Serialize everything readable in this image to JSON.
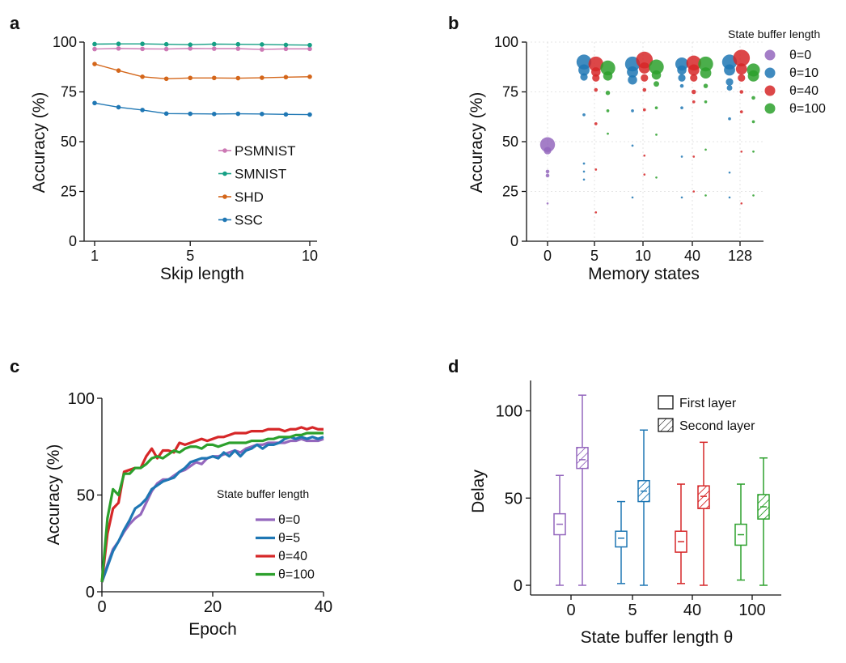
{
  "chart_data": [
    {
      "panel": "a",
      "type": "line",
      "xlabel": "Skip length",
      "ylabel": "Accuracy (%)",
      "xlim": [
        1,
        10
      ],
      "ylim": [
        0,
        100
      ],
      "xticks": [
        1,
        5,
        10
      ],
      "yticks": [
        0,
        25,
        50,
        75,
        100
      ],
      "x": [
        1,
        2,
        3,
        4,
        5,
        6,
        7,
        8,
        9,
        10
      ],
      "series": [
        {
          "name": "PSMNIST",
          "color": "#cc79b4",
          "values": [
            96.5,
            96.8,
            96.6,
            96.5,
            96.8,
            96.7,
            96.7,
            96.3,
            96.6,
            96.6
          ]
        },
        {
          "name": "SMNIST",
          "color": "#16a085",
          "values": [
            99.0,
            99.1,
            99.1,
            98.9,
            98.7,
            99.0,
            98.9,
            98.8,
            98.6,
            98.5
          ]
        },
        {
          "name": "SHD",
          "color": "#d4661a",
          "values": [
            89.0,
            85.7,
            82.6,
            81.6,
            82.0,
            82.0,
            81.9,
            82.1,
            82.4,
            82.6
          ]
        },
        {
          "name": "SSC",
          "color": "#1f77b4",
          "values": [
            69.4,
            67.3,
            65.9,
            64.1,
            64.0,
            63.9,
            64.0,
            63.9,
            63.7,
            63.6
          ]
        }
      ],
      "legend": [
        "PSMNIST",
        "SMNIST",
        "SHD",
        "SSC"
      ]
    },
    {
      "panel": "b",
      "type": "scatter",
      "xlabel": "Memory states",
      "ylabel": "Accuracy (%)",
      "categories": [
        "0",
        "5",
        "10",
        "40",
        "128"
      ],
      "ylim": [
        0,
        100
      ],
      "yticks": [
        0,
        25,
        50,
        75,
        100
      ],
      "legend_title": "State buffer length",
      "series": [
        {
          "name": "θ=0",
          "color": "#9467bd",
          "points": [
            {
              "cat": "0",
              "offset": 0,
              "y": 48.5,
              "size": 4
            },
            {
              "cat": "0",
              "offset": 0,
              "y": 45.5,
              "size": 2
            },
            {
              "cat": "0",
              "offset": 0,
              "y": 35.0,
              "size": 1
            },
            {
              "cat": "0",
              "offset": 0,
              "y": 33.0,
              "size": 1
            },
            {
              "cat": "0",
              "offset": 0,
              "y": 19.0,
              "size": 0.5
            }
          ]
        },
        {
          "name": "θ=10",
          "color": "#1f77b4",
          "points": [
            {
              "cat": "5",
              "offset": -0.22,
              "y": 90.0,
              "size": 4
            },
            {
              "cat": "5",
              "offset": -0.22,
              "y": 86.0,
              "size": 3
            },
            {
              "cat": "5",
              "offset": -0.22,
              "y": 82.5,
              "size": 2
            },
            {
              "cat": "5",
              "offset": -0.22,
              "y": 63.5,
              "size": 0.8
            },
            {
              "cat": "5",
              "offset": -0.22,
              "y": 39.0,
              "size": 0.6
            },
            {
              "cat": "5",
              "offset": -0.22,
              "y": 35.0,
              "size": 0.5
            },
            {
              "cat": "5",
              "offset": -0.22,
              "y": 31.0,
              "size": 0.5
            },
            {
              "cat": "10",
              "offset": -0.22,
              "y": 89.0,
              "size": 4
            },
            {
              "cat": "10",
              "offset": -0.22,
              "y": 85.0,
              "size": 3
            },
            {
              "cat": "10",
              "offset": -0.22,
              "y": 81.0,
              "size": 2.5
            },
            {
              "cat": "10",
              "offset": -0.22,
              "y": 65.5,
              "size": 0.8
            },
            {
              "cat": "10",
              "offset": -0.22,
              "y": 48.0,
              "size": 0.6
            },
            {
              "cat": "10",
              "offset": -0.22,
              "y": 22.0,
              "size": 0.4
            },
            {
              "cat": "40",
              "offset": -0.22,
              "y": 89.0,
              "size": 3.5
            },
            {
              "cat": "40",
              "offset": -0.22,
              "y": 86.0,
              "size": 2.5
            },
            {
              "cat": "40",
              "offset": -0.22,
              "y": 82.0,
              "size": 2
            },
            {
              "cat": "40",
              "offset": -0.22,
              "y": 78.0,
              "size": 1
            },
            {
              "cat": "40",
              "offset": -0.22,
              "y": 67.0,
              "size": 0.8
            },
            {
              "cat": "40",
              "offset": -0.22,
              "y": 42.5,
              "size": 0.5
            },
            {
              "cat": "40",
              "offset": -0.22,
              "y": 22.0,
              "size": 0.4
            },
            {
              "cat": "128",
              "offset": -0.22,
              "y": 90.0,
              "size": 4
            },
            {
              "cat": "128",
              "offset": -0.22,
              "y": 86.0,
              "size": 3
            },
            {
              "cat": "128",
              "offset": -0.22,
              "y": 80.0,
              "size": 2
            },
            {
              "cat": "128",
              "offset": -0.22,
              "y": 77.0,
              "size": 1.5
            },
            {
              "cat": "128",
              "offset": -0.22,
              "y": 61.5,
              "size": 0.8
            },
            {
              "cat": "128",
              "offset": -0.22,
              "y": 34.5,
              "size": 0.5
            },
            {
              "cat": "128",
              "offset": -0.22,
              "y": 22.0,
              "size": 0.4
            }
          ]
        },
        {
          "name": "θ=40",
          "color": "#d62728",
          "points": [
            {
              "cat": "5",
              "offset": 0.03,
              "y": 89.0,
              "size": 4
            },
            {
              "cat": "5",
              "offset": 0.03,
              "y": 85.0,
              "size": 2.5
            },
            {
              "cat": "5",
              "offset": 0.03,
              "y": 82.0,
              "size": 2
            },
            {
              "cat": "5",
              "offset": 0.03,
              "y": 76.0,
              "size": 1
            },
            {
              "cat": "5",
              "offset": 0.03,
              "y": 59.0,
              "size": 0.8
            },
            {
              "cat": "5",
              "offset": 0.03,
              "y": 36.0,
              "size": 0.6
            },
            {
              "cat": "5",
              "offset": 0.03,
              "y": 14.5,
              "size": 0.4
            },
            {
              "cat": "10",
              "offset": 0.03,
              "y": 91.0,
              "size": 4.5
            },
            {
              "cat": "10",
              "offset": 0.03,
              "y": 87.0,
              "size": 3
            },
            {
              "cat": "10",
              "offset": 0.03,
              "y": 82.0,
              "size": 2
            },
            {
              "cat": "10",
              "offset": 0.03,
              "y": 76.0,
              "size": 1
            },
            {
              "cat": "10",
              "offset": 0.03,
              "y": 66.0,
              "size": 0.8
            },
            {
              "cat": "10",
              "offset": 0.03,
              "y": 43.0,
              "size": 0.5
            },
            {
              "cat": "10",
              "offset": 0.03,
              "y": 33.5,
              "size": 0.5
            },
            {
              "cat": "40",
              "offset": 0.03,
              "y": 89.5,
              "size": 4
            },
            {
              "cat": "40",
              "offset": 0.03,
              "y": 86.0,
              "size": 3
            },
            {
              "cat": "40",
              "offset": 0.03,
              "y": 82.0,
              "size": 2
            },
            {
              "cat": "40",
              "offset": 0.03,
              "y": 75.0,
              "size": 1.2
            },
            {
              "cat": "40",
              "offset": 0.03,
              "y": 70.0,
              "size": 0.8
            },
            {
              "cat": "40",
              "offset": 0.03,
              "y": 42.5,
              "size": 0.5
            },
            {
              "cat": "40",
              "offset": 0.03,
              "y": 25.0,
              "size": 0.4
            },
            {
              "cat": "128",
              "offset": 0.03,
              "y": 92.0,
              "size": 4.5
            },
            {
              "cat": "128",
              "offset": 0.03,
              "y": 86.5,
              "size": 3
            },
            {
              "cat": "128",
              "offset": 0.03,
              "y": 82.0,
              "size": 2
            },
            {
              "cat": "128",
              "offset": 0.03,
              "y": 75.0,
              "size": 1
            },
            {
              "cat": "128",
              "offset": 0.03,
              "y": 65.0,
              "size": 0.8
            },
            {
              "cat": "128",
              "offset": 0.03,
              "y": 45.0,
              "size": 0.5
            },
            {
              "cat": "128",
              "offset": 0.03,
              "y": 19.0,
              "size": 0.4
            }
          ]
        },
        {
          "name": "θ=100",
          "color": "#2ca02c",
          "points": [
            {
              "cat": "5",
              "offset": 0.28,
              "y": 87.0,
              "size": 4
            },
            {
              "cat": "5",
              "offset": 0.28,
              "y": 83.0,
              "size": 2.5
            },
            {
              "cat": "5",
              "offset": 0.28,
              "y": 74.5,
              "size": 1.2
            },
            {
              "cat": "5",
              "offset": 0.28,
              "y": 65.5,
              "size": 0.8
            },
            {
              "cat": "5",
              "offset": 0.28,
              "y": 54.0,
              "size": 0.6
            },
            {
              "cat": "10",
              "offset": 0.28,
              "y": 87.5,
              "size": 4
            },
            {
              "cat": "10",
              "offset": 0.28,
              "y": 83.5,
              "size": 2.5
            },
            {
              "cat": "10",
              "offset": 0.28,
              "y": 79.0,
              "size": 1.5
            },
            {
              "cat": "10",
              "offset": 0.28,
              "y": 67.0,
              "size": 0.8
            },
            {
              "cat": "10",
              "offset": 0.28,
              "y": 53.5,
              "size": 0.6
            },
            {
              "cat": "10",
              "offset": 0.28,
              "y": 32.0,
              "size": 0.5
            },
            {
              "cat": "40",
              "offset": 0.28,
              "y": 89.0,
              "size": 4
            },
            {
              "cat": "40",
              "offset": 0.28,
              "y": 84.5,
              "size": 3
            },
            {
              "cat": "40",
              "offset": 0.28,
              "y": 78.0,
              "size": 1.2
            },
            {
              "cat": "40",
              "offset": 0.28,
              "y": 70.0,
              "size": 0.8
            },
            {
              "cat": "40",
              "offset": 0.28,
              "y": 46.0,
              "size": 0.5
            },
            {
              "cat": "40",
              "offset": 0.28,
              "y": 23.0,
              "size": 0.4
            },
            {
              "cat": "128",
              "offset": 0.28,
              "y": 86.0,
              "size": 3.5
            },
            {
              "cat": "128",
              "offset": 0.28,
              "y": 83.0,
              "size": 3
            },
            {
              "cat": "128",
              "offset": 0.28,
              "y": 72.0,
              "size": 1
            },
            {
              "cat": "128",
              "offset": 0.28,
              "y": 60.0,
              "size": 0.8
            },
            {
              "cat": "128",
              "offset": 0.28,
              "y": 45.0,
              "size": 0.6
            },
            {
              "cat": "128",
              "offset": 0.28,
              "y": 23.0,
              "size": 0.4
            }
          ]
        }
      ]
    },
    {
      "panel": "c",
      "type": "line",
      "xlabel": "Epoch",
      "ylabel": "Accuracy (%)",
      "xlim": [
        0,
        40
      ],
      "ylim": [
        0,
        100
      ],
      "xticks": [
        0,
        20,
        40
      ],
      "yticks": [
        0,
        50,
        100
      ],
      "legend_title": "State buffer length",
      "x": [
        0,
        1,
        2,
        3,
        4,
        5,
        6,
        7,
        8,
        9,
        10,
        11,
        12,
        13,
        14,
        15,
        16,
        17,
        18,
        19,
        20,
        21,
        22,
        23,
        24,
        25,
        26,
        27,
        28,
        29,
        30,
        31,
        32,
        33,
        34,
        35,
        36,
        37,
        38,
        39,
        40
      ],
      "series": [
        {
          "name": "θ=0",
          "color": "#9467bd",
          "values": [
            5,
            14,
            22,
            26,
            31,
            35,
            38,
            40,
            46,
            52,
            56,
            58,
            58,
            60,
            62,
            63,
            65,
            67,
            66,
            69,
            70,
            70,
            71,
            72,
            73,
            72,
            74,
            75,
            76,
            76,
            77,
            77,
            77,
            77,
            78,
            78,
            79,
            78,
            78,
            78,
            79
          ]
        },
        {
          "name": "θ=5",
          "color": "#1f77b4",
          "values": [
            5,
            13,
            21,
            26,
            32,
            37,
            43,
            45,
            48,
            53,
            55,
            57,
            58,
            59,
            62,
            64,
            67,
            68,
            69,
            69,
            70,
            69,
            72,
            70,
            73,
            70,
            73,
            74,
            76,
            74,
            76,
            76,
            77,
            79,
            80,
            79,
            80,
            79,
            80,
            79,
            80
          ]
        },
        {
          "name": "θ=40",
          "color": "#d62728",
          "values": [
            5,
            30,
            43,
            46,
            62,
            63,
            64,
            64,
            70,
            74,
            69,
            73,
            73,
            72,
            77,
            76,
            77,
            78,
            79,
            78,
            79,
            80,
            80,
            81,
            82,
            82,
            82,
            83,
            83,
            83,
            84,
            84,
            84,
            83,
            84,
            84,
            85,
            84,
            85,
            84,
            84
          ]
        },
        {
          "name": "θ=100",
          "color": "#2ca02c",
          "values": [
            5,
            38,
            53,
            50,
            61,
            61,
            64,
            64,
            66,
            69,
            70,
            69,
            71,
            73,
            72,
            74,
            75,
            75,
            74,
            76,
            76,
            75,
            76,
            77,
            77,
            77,
            77,
            78,
            78,
            78,
            79,
            79,
            80,
            80,
            80,
            81,
            81,
            82,
            82,
            82,
            82
          ]
        }
      ]
    },
    {
      "panel": "d",
      "type": "box",
      "xlabel": "State buffer length θ",
      "ylabel": "Delay",
      "categories": [
        "0",
        "5",
        "40",
        "100"
      ],
      "ylim": [
        0,
        110
      ],
      "yticks": [
        0,
        50,
        100
      ],
      "legend": [
        "First layer",
        "Second layer"
      ],
      "groups": [
        {
          "category": "0",
          "color": "#9467bd",
          "first": {
            "min": 0,
            "q1": 29,
            "median": 35,
            "q3": 41,
            "max": 63
          },
          "second": {
            "min": 0,
            "q1": 67,
            "median": 72,
            "q3": 79,
            "max": 109
          }
        },
        {
          "category": "5",
          "color": "#1f77b4",
          "first": {
            "min": 1,
            "q1": 22,
            "median": 27,
            "q3": 31,
            "max": 48
          },
          "second": {
            "min": 0,
            "q1": 48,
            "median": 54,
            "q3": 60,
            "max": 89
          }
        },
        {
          "category": "40",
          "color": "#d62728",
          "first": {
            "min": 1,
            "q1": 19,
            "median": 25,
            "q3": 31,
            "max": 58
          },
          "second": {
            "min": 0,
            "q1": 44,
            "median": 51,
            "q3": 57,
            "max": 82
          }
        },
        {
          "category": "100",
          "color": "#2ca02c",
          "first": {
            "min": 3,
            "q1": 23,
            "median": 29,
            "q3": 35,
            "max": 58
          },
          "second": {
            "min": 0,
            "q1": 38,
            "median": 45,
            "q3": 52,
            "max": 73
          }
        }
      ]
    }
  ],
  "panel_labels": {
    "a": "a",
    "b": "b",
    "c": "c",
    "d": "d"
  }
}
